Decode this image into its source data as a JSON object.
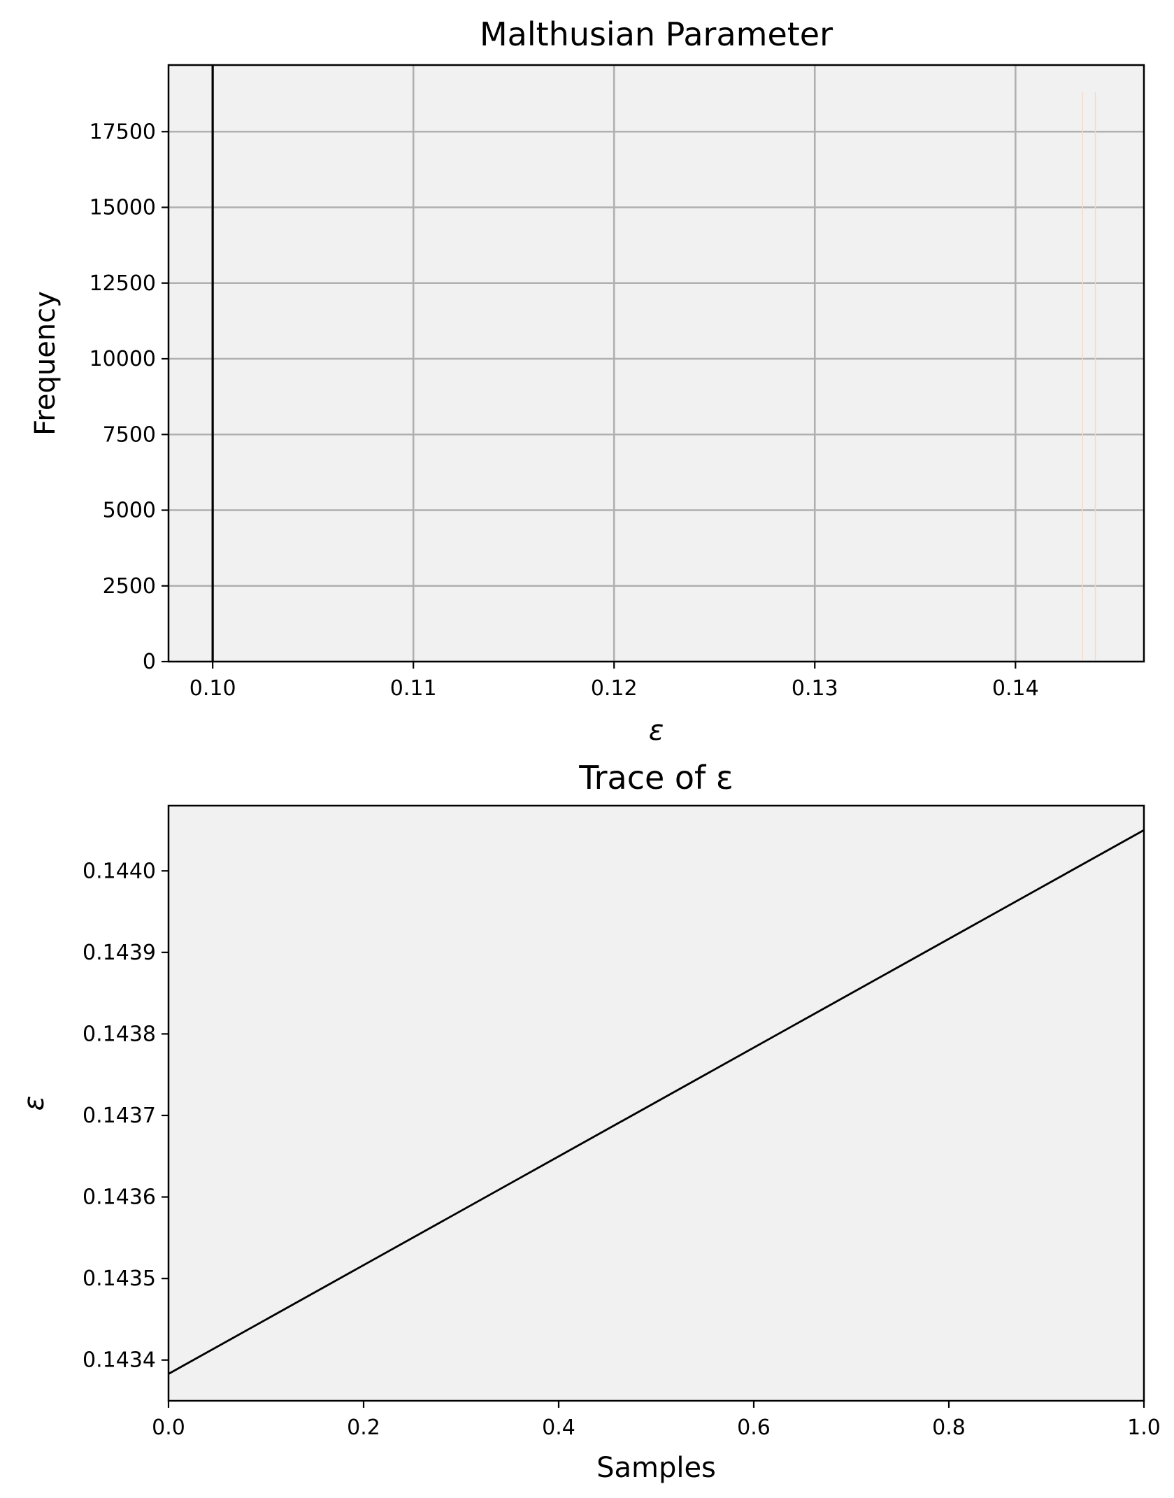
{
  "colors": {
    "background": "#ffffff",
    "axes_face": "#f1f1f1",
    "grid": "#b0b0b0",
    "line": "#000000",
    "faint_bar": "#f3d9cc"
  },
  "chart_data": [
    {
      "type": "histogram",
      "title": "Malthusian Parameter",
      "xlabel": "ε",
      "ylabel": "Frequency",
      "xlim": [
        0.0978,
        0.1464
      ],
      "ylim": [
        0,
        19700
      ],
      "xticks": [
        0.1,
        0.11,
        0.12,
        0.13,
        0.14
      ],
      "xtick_labels": [
        "0.10",
        "0.11",
        "0.12",
        "0.13",
        "0.14"
      ],
      "yticks": [
        0,
        2500,
        5000,
        7500,
        10000,
        12500,
        15000,
        17500
      ],
      "ytick_labels": [
        "0",
        "2500",
        "5000",
        "7500",
        "10000",
        "12500",
        "15000",
        "17500"
      ],
      "grid": true,
      "bins": [
        {
          "x_start": 0.14334,
          "x_end": 0.14398,
          "frequency": 18800
        }
      ],
      "reference_line": {
        "x": 0.1
      }
    },
    {
      "type": "line",
      "title": "Trace of ε",
      "xlabel": "Samples",
      "ylabel": "ε",
      "xlim": [
        0.0,
        1.0
      ],
      "ylim": [
        0.14335,
        0.14408
      ],
      "xticks": [
        0.0,
        0.2,
        0.4,
        0.6,
        0.8,
        1.0
      ],
      "xtick_labels": [
        "0.0",
        "0.2",
        "0.4",
        "0.6",
        "0.8",
        "1.0"
      ],
      "yticks": [
        0.1434,
        0.1435,
        0.1436,
        0.1437,
        0.1438,
        0.1439,
        0.144
      ],
      "ytick_labels": [
        "0.1434",
        "0.1435",
        "0.1436",
        "0.1437",
        "0.1438",
        "0.1439",
        "0.1440"
      ],
      "grid": false,
      "series": [
        {
          "x": [
            0.0,
            1.0
          ],
          "y": [
            0.143383,
            0.14405
          ]
        }
      ]
    }
  ]
}
